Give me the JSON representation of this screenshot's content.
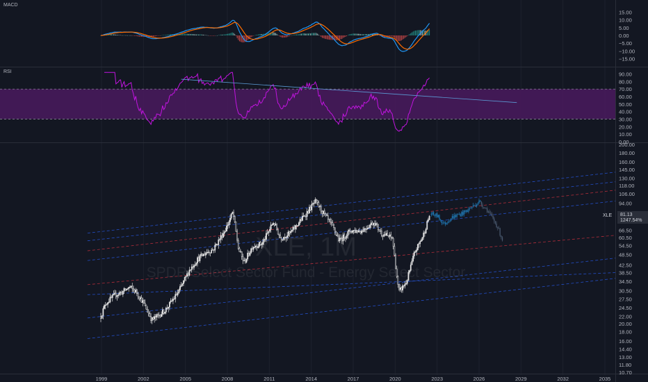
{
  "colors": {
    "background": "#131722",
    "text": "#b2b5be",
    "separator": "#2a2e39",
    "grid": "#1e222d",
    "candle": "#e6e6e6",
    "candle_future": "#1f78b4",
    "macd_line": "#2196f3",
    "signal_line": "#ff6d00",
    "hist_pos": "#26a69a",
    "hist_pos_light": "#b2dfdb",
    "hist_neg": "#ef5350",
    "rsi_line": "#c214e0",
    "rsi_band": "#4a1a5e",
    "rsi_trend": "#5b9bd5",
    "channel_blue": "#2962ff",
    "channel_red": "#f23645",
    "price_tag": "#2a2e39"
  },
  "panes": {
    "macd": {
      "label": "MACD",
      "ticks": [
        "15.00",
        "10.00",
        "5.00",
        "0.00",
        "−5.00",
        "−10.00",
        "−15.00"
      ]
    },
    "rsi": {
      "label": "RSI",
      "ticks": [
        "90.00",
        "80.00",
        "70.00",
        "60.00",
        "50.00",
        "40.00",
        "30.00",
        "20.00",
        "10.00",
        "0.00"
      ]
    },
    "price": {
      "ticks": [
        "200.00",
        "180.00",
        "160.00",
        "145.00",
        "130.00",
        "118.00",
        "106.00",
        "94.00",
        "74.50",
        "66.50",
        "60.50",
        "54.50",
        "48.50",
        "42.50",
        "38.50",
        "34.50",
        "30.50",
        "27.50",
        "24.50",
        "22.00",
        "20.00",
        "18.00",
        "16.00",
        "14.40",
        "13.00",
        "11.80",
        "10.70"
      ],
      "scale": "log"
    }
  },
  "watermark": {
    "symbol": "XLE, 1M",
    "description": "SPDR Select Sector Fund - Energy Select Sector"
  },
  "price_tag": {
    "symbol": "XLE",
    "price": "81.13",
    "percent": "1247.54%"
  },
  "x_axis": {
    "labels": [
      "1999",
      "2002",
      "2005",
      "2008",
      "2011",
      "2014",
      "2017",
      "2020",
      "2023",
      "2026",
      "2029",
      "2032",
      "2035"
    ]
  },
  "chart_data": {
    "type": "candlestick",
    "interval": "1M",
    "symbol": "XLE",
    "x_range": [
      1998,
      2036
    ],
    "y_range_log": [
      10.7,
      200
    ],
    "anchors": [
      {
        "t": 1998.95,
        "v": 22
      },
      {
        "t": 1999.3,
        "v": 26
      },
      {
        "t": 2000.0,
        "v": 29
      },
      {
        "t": 2000.5,
        "v": 30
      },
      {
        "t": 2001.0,
        "v": 32
      },
      {
        "t": 2001.5,
        "v": 30
      },
      {
        "t": 2002.0,
        "v": 26
      },
      {
        "t": 2002.6,
        "v": 21
      },
      {
        "t": 2003.0,
        "v": 22
      },
      {
        "t": 2003.6,
        "v": 24
      },
      {
        "t": 2004.5,
        "v": 30
      },
      {
        "t": 2005.3,
        "v": 40
      },
      {
        "t": 2005.9,
        "v": 46
      },
      {
        "t": 2006.5,
        "v": 50
      },
      {
        "t": 2007.0,
        "v": 52
      },
      {
        "t": 2007.9,
        "v": 68
      },
      {
        "t": 2008.4,
        "v": 84
      },
      {
        "t": 2008.8,
        "v": 52
      },
      {
        "t": 2009.2,
        "v": 44
      },
      {
        "t": 2009.8,
        "v": 54
      },
      {
        "t": 2010.5,
        "v": 56
      },
      {
        "t": 2011.3,
        "v": 74
      },
      {
        "t": 2011.8,
        "v": 60
      },
      {
        "t": 2012.5,
        "v": 64
      },
      {
        "t": 2013.5,
        "v": 80
      },
      {
        "t": 2014.3,
        "v": 96
      },
      {
        "t": 2014.9,
        "v": 82
      },
      {
        "t": 2015.6,
        "v": 68
      },
      {
        "t": 2016.0,
        "v": 58
      },
      {
        "t": 2016.8,
        "v": 66
      },
      {
        "t": 2017.6,
        "v": 66
      },
      {
        "t": 2018.5,
        "v": 74
      },
      {
        "t": 2019.0,
        "v": 64
      },
      {
        "t": 2019.8,
        "v": 60
      },
      {
        "t": 2020.25,
        "v": 30
      },
      {
        "t": 2020.8,
        "v": 34
      },
      {
        "t": 2021.4,
        "v": 50
      },
      {
        "t": 2022.0,
        "v": 62
      },
      {
        "t": 2022.5,
        "v": 82
      }
    ],
    "future_anchors": [
      {
        "t": 2022.5,
        "v": 82
      },
      {
        "t": 2023.0,
        "v": 80
      },
      {
        "t": 2023.5,
        "v": 72
      },
      {
        "t": 2024.0,
        "v": 78
      },
      {
        "t": 2025.0,
        "v": 84
      },
      {
        "t": 2026.0,
        "v": 96
      },
      {
        "t": 2026.6,
        "v": 86
      },
      {
        "t": 2027.3,
        "v": 70
      },
      {
        "t": 2027.7,
        "v": 58
      }
    ],
    "rsi": {
      "band": [
        30,
        70
      ],
      "trendline": [
        {
          "t": 2004.7,
          "v": 83
        },
        {
          "t": 2028.7,
          "v": 52
        }
      ]
    },
    "channel_lines_blue": [
      [
        {
          "t": 1998,
          "v": 16.5
        },
        {
          "t": 2036,
          "v": 37
        }
      ],
      [
        {
          "t": 1998,
          "v": 21.5
        },
        {
          "t": 2036,
          "v": 48
        }
      ],
      [
        {
          "t": 1998,
          "v": 29
        },
        {
          "t": 2036,
          "v": 39
        }
      ],
      [
        {
          "t": 1998,
          "v": 45
        },
        {
          "t": 2036,
          "v": 100
        }
      ],
      [
        {
          "t": 1998,
          "v": 58
        },
        {
          "t": 2036,
          "v": 128
        }
      ],
      [
        {
          "t": 1998,
          "v": 64
        },
        {
          "t": 2036,
          "v": 145
        }
      ]
    ],
    "channel_lines_red": [
      [
        {
          "t": 1998,
          "v": 51
        },
        {
          "t": 2036,
          "v": 115
        }
      ],
      [
        {
          "t": 1998,
          "v": 33
        },
        {
          "t": 2036,
          "v": 64
        }
      ]
    ]
  }
}
